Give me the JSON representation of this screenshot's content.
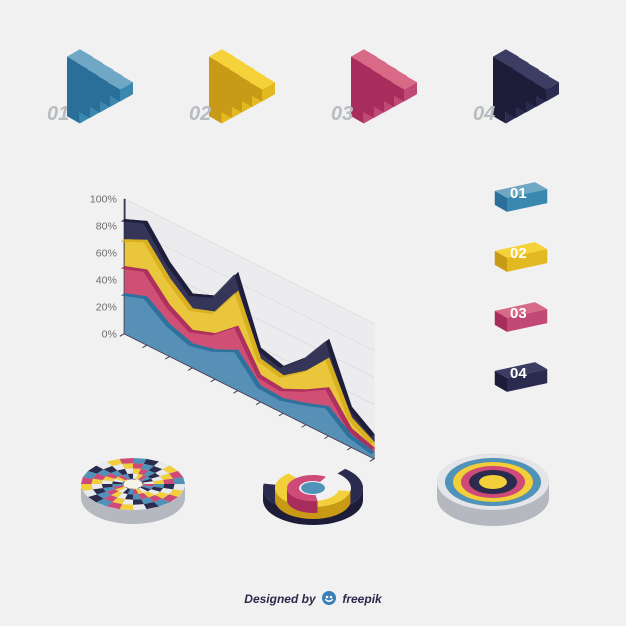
{
  "background_color": "#f1f1f1",
  "stairs": [
    {
      "num": "01",
      "steps": 5,
      "palette": {
        "top": "#6fa7c4",
        "left": "#2a6e9a",
        "right": "#3a88b0"
      },
      "num_color": "#b9bcc0"
    },
    {
      "num": "02",
      "steps": 5,
      "palette": {
        "top": "#f6d23a",
        "left": "#c99a16",
        "right": "#e3b922"
      },
      "num_color": "#b9bcc0"
    },
    {
      "num": "03",
      "steps": 5,
      "palette": {
        "top": "#d96a87",
        "left": "#a92d5c",
        "right": "#c14975"
      },
      "num_color": "#b9bcc0"
    },
    {
      "num": "04",
      "steps": 5,
      "palette": {
        "top": "#3d3d64",
        "left": "#1d1d3a",
        "right": "#2b2b4f"
      },
      "num_color": "#b9bcc0"
    }
  ],
  "area_chart": {
    "type": "isometric-area",
    "ylabels": [
      "100%",
      "80%",
      "60%",
      "40%",
      "20%",
      "0%"
    ],
    "ytick_color": "#6d6d6d",
    "ytick_fontsize": 11,
    "axis_color": "#3a3a58",
    "grid_color": "#9aa0a8",
    "background_face": "#e9eaec",
    "x_steps": 12,
    "series": [
      {
        "name": "dark",
        "color_top": "#2b2b4f",
        "color_front": "#1d1d3a",
        "values": [
          85,
          92,
          70,
          55,
          62,
          88,
          40,
          35,
          50,
          72,
          30,
          18
        ]
      },
      {
        "name": "yellow",
        "color_top": "#f3cf3a",
        "color_front": "#d7ad1e",
        "values": [
          70,
          78,
          58,
          44,
          50,
          74,
          32,
          28,
          40,
          58,
          22,
          12
        ]
      },
      {
        "name": "magenta",
        "color_top": "#cf4a78",
        "color_front": "#a92d5c",
        "values": [
          50,
          56,
          38,
          28,
          34,
          48,
          20,
          18,
          26,
          36,
          14,
          8
        ]
      },
      {
        "name": "blue",
        "color_top": "#4f93bb",
        "color_front": "#2a6e9a",
        "values": [
          30,
          36,
          24,
          18,
          22,
          30,
          12,
          11,
          16,
          22,
          9,
          5
        ]
      }
    ]
  },
  "badges": [
    {
      "num": "01",
      "top": "#6fa7c4",
      "left": "#2a6e9a",
      "right": "#3a88b0",
      "text": "#ffffff"
    },
    {
      "num": "02",
      "top": "#f6d23a",
      "left": "#c99a16",
      "right": "#e3b922",
      "text": "#ffffff"
    },
    {
      "num": "03",
      "top": "#d96a87",
      "left": "#a92d5c",
      "right": "#c14975",
      "text": "#ffffff"
    },
    {
      "num": "04",
      "top": "#3d3d64",
      "left": "#1d1d3a",
      "right": "#2b2b4f",
      "text": "#ffffff"
    }
  ],
  "circles": [
    {
      "type": "radial-segmented",
      "rings": 5,
      "sectors": 24,
      "colors": [
        "#f3cf3a",
        "#cf4a78",
        "#4f93bb",
        "#2b2b4f",
        "#e9eaec"
      ],
      "center": "#f7f4ea",
      "side": "#b5b8bf",
      "depth": 14
    },
    {
      "type": "arc-ring",
      "arcs": [
        {
          "start": -50,
          "end": 190,
          "r_out": 50,
          "r_in": 38,
          "top": "#2b2b4f",
          "side": "#1d1d3a"
        },
        {
          "start": 10,
          "end": 230,
          "r_out": 38,
          "r_in": 26,
          "top": "#f3cf3a",
          "side": "#c99a16"
        },
        {
          "start": 80,
          "end": 300,
          "r_out": 26,
          "r_in": 14,
          "top": "#cf4a78",
          "side": "#a92d5c"
        }
      ],
      "center": "#4f93bb",
      "depth": 12
    },
    {
      "type": "concentric-disc",
      "rings": [
        {
          "r": 56,
          "color": "#e3e5e8"
        },
        {
          "r": 48,
          "color": "#4f93bb"
        },
        {
          "r": 40,
          "color": "#f3cf3a"
        },
        {
          "r": 32,
          "color": "#cf4a78"
        },
        {
          "r": 24,
          "color": "#2b2b4f"
        },
        {
          "r": 14,
          "color": "#f3cf3a"
        }
      ],
      "accent_side": "#b5b8bf",
      "depth": 16
    }
  ],
  "credit": {
    "prefix": "Designed by",
    "brand": "freepik",
    "color": "#2a2a4a",
    "fontsize": 12,
    "icon_color": "#3b7fb8"
  }
}
